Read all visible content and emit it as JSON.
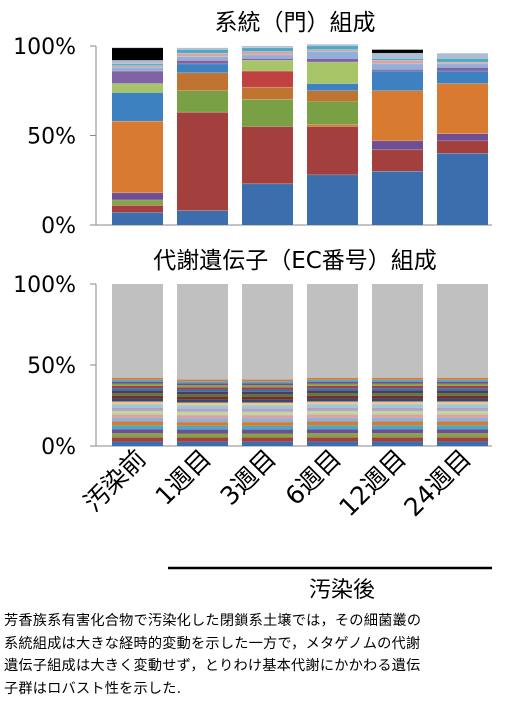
{
  "chart_data": [
    {
      "type": "bar",
      "stacked": true,
      "title": "系統（門）組成",
      "categories": [
        "汚染前",
        "1週目",
        "3週目",
        "6週目",
        "12週目",
        "24週目"
      ],
      "ylim": [
        0,
        100
      ],
      "yticks": [
        "0%",
        "50%",
        "100%"
      ],
      "series": [
        {
          "color": "#3c6ead",
          "values": [
            7,
            8,
            23,
            28,
            30,
            40
          ]
        },
        {
          "color": "#a33f3d",
          "values": [
            4,
            55,
            32,
            27,
            12,
            7
          ]
        },
        {
          "color": "#86a34a",
          "values": [
            3,
            0,
            0,
            0,
            0,
            0
          ]
        },
        {
          "color": "#6f4e93",
          "values": [
            4,
            0,
            0,
            0,
            5,
            4
          ]
        },
        {
          "color": "#d87a30",
          "values": [
            40,
            0,
            0,
            1,
            28,
            28
          ]
        },
        {
          "color": "#7aa046",
          "values": [
            0,
            12,
            15,
            13,
            0,
            0
          ]
        },
        {
          "color": "#c07432",
          "values": [
            0,
            10,
            7,
            6,
            0,
            0
          ]
        },
        {
          "color": "#c14040",
          "values": [
            0,
            0,
            9,
            0,
            0,
            0
          ]
        },
        {
          "color": "#3d81c0",
          "values": [
            16,
            5,
            0,
            4,
            11,
            7
          ]
        },
        {
          "color": "#a7c466",
          "values": [
            5,
            0,
            6,
            12,
            0,
            0
          ]
        },
        {
          "color": "#8063a4",
          "values": [
            7,
            2,
            1,
            2,
            1,
            2
          ]
        },
        {
          "color": "#8fb0d8",
          "values": [
            2,
            2,
            2,
            4,
            3,
            2
          ]
        },
        {
          "color": "#d8a3a2",
          "values": [
            1,
            2,
            2,
            1,
            2,
            1
          ]
        },
        {
          "color": "#4aa9c4",
          "values": [
            1,
            2,
            2,
            2,
            1,
            2
          ]
        },
        {
          "color": "#aebcd4",
          "values": [
            2,
            1,
            1,
            1,
            3,
            3
          ]
        },
        {
          "color": "#000000",
          "values": [
            7,
            0,
            0,
            0,
            2,
            0
          ]
        }
      ]
    },
    {
      "type": "bar",
      "stacked": true,
      "title": "代謝遺伝子（EC番号）組成",
      "categories": [
        "汚染前",
        "1週目",
        "3週目",
        "6週目",
        "12週目",
        "24週目"
      ],
      "ylim": [
        0,
        100
      ],
      "yticks": [
        "0%",
        "50%",
        "100%"
      ],
      "band_palette": [
        "#3c6ead",
        "#a33f3d",
        "#86a34a",
        "#6f4e93",
        "#4aa9c4",
        "#d87a30",
        "#8fb0d8",
        "#d8a3a2",
        "#c3d69b",
        "#b3a2c7",
        "#93cddd",
        "#fac090",
        "#2c4d75",
        "#772c2a",
        "#5f7530",
        "#4d3b62"
      ],
      "bands_count": 22,
      "band_totals": [
        42,
        41,
        41,
        42,
        42,
        42
      ],
      "remainder_color": "#c0c0c0"
    }
  ],
  "group_label": "汚染後",
  "caption_lines": [
    "芳香族系有害化合物で汚染化した閉鎖系土壌では，その細菌叢の",
    "系統組成は大きな経時的変動を示した一方で，メタゲノムの代謝",
    "遺伝子組成は大きく変動せず，とりわけ基本代謝にかかわる遺伝",
    "子群はロバスト性を示した."
  ]
}
